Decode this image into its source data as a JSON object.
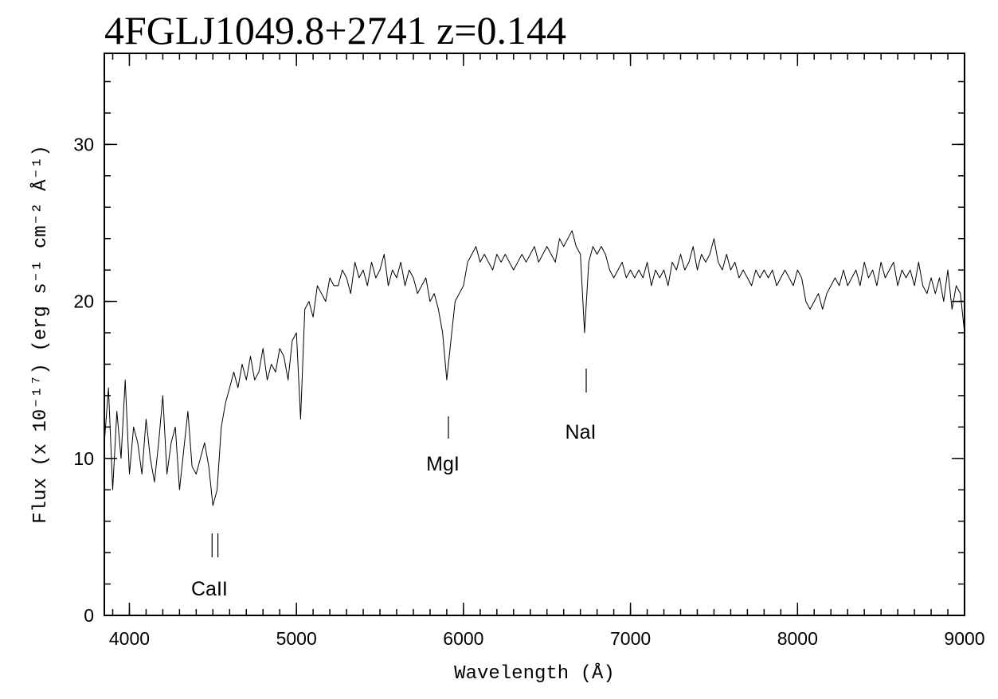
{
  "chart_data": {
    "type": "line",
    "title": "4FGLJ1049.8+2741 z=0.144",
    "x_label": "Wavelength (Å)",
    "y_label": "Flux (x 10⁻¹⁷) (erg s⁻¹ cm⁻² Å⁻¹)",
    "color": "#000000",
    "xlim": [
      3850,
      9000
    ],
    "ylim": [
      0,
      35.8
    ],
    "xticks": [
      4000,
      5000,
      6000,
      7000,
      8000,
      9000
    ],
    "yticks": [
      0,
      10,
      20,
      30
    ],
    "annotations": [
      {
        "text": "CaII",
        "x": [
          4495,
          4530
        ]
      },
      {
        "text": "MgI",
        "x": [
          5910
        ]
      },
      {
        "text": "NaI",
        "x": [
          6735
        ]
      }
    ],
    "x": [
      3850,
      3875,
      3900,
      3925,
      3950,
      3975,
      4000,
      4025,
      4050,
      4075,
      4100,
      4125,
      4150,
      4175,
      4200,
      4225,
      4250,
      4275,
      4300,
      4325,
      4350,
      4375,
      4400,
      4425,
      4450,
      4475,
      4500,
      4525,
      4550,
      4575,
      4600,
      4625,
      4650,
      4675,
      4700,
      4725,
      4750,
      4775,
      4800,
      4825,
      4850,
      4875,
      4900,
      4925,
      4950,
      4975,
      5000,
      5025,
      5050,
      5075,
      5100,
      5125,
      5150,
      5175,
      5200,
      5225,
      5250,
      5275,
      5300,
      5325,
      5350,
      5375,
      5400,
      5425,
      5450,
      5475,
      5500,
      5525,
      5550,
      5575,
      5600,
      5625,
      5650,
      5675,
      5700,
      5725,
      5750,
      5775,
      5800,
      5825,
      5850,
      5875,
      5900,
      5925,
      5950,
      5975,
      6000,
      6025,
      6050,
      6075,
      6100,
      6125,
      6150,
      6175,
      6200,
      6225,
      6250,
      6275,
      6300,
      6325,
      6350,
      6375,
      6400,
      6425,
      6450,
      6475,
      6500,
      6525,
      6550,
      6575,
      6600,
      6625,
      6650,
      6675,
      6700,
      6725,
      6750,
      6775,
      6800,
      6825,
      6850,
      6875,
      6900,
      6925,
      6950,
      6975,
      7000,
      7025,
      7050,
      7075,
      7100,
      7125,
      7150,
      7175,
      7200,
      7225,
      7250,
      7275,
      7300,
      7325,
      7350,
      7375,
      7400,
      7425,
      7450,
      7475,
      7500,
      7525,
      7550,
      7575,
      7600,
      7625,
      7650,
      7675,
      7700,
      7725,
      7750,
      7775,
      7800,
      7825,
      7850,
      7875,
      7900,
      7925,
      7950,
      7975,
      8000,
      8025,
      8050,
      8075,
      8100,
      8125,
      8150,
      8175,
      8200,
      8225,
      8250,
      8275,
      8300,
      8325,
      8350,
      8375,
      8400,
      8425,
      8450,
      8475,
      8500,
      8525,
      8550,
      8575,
      8600,
      8625,
      8650,
      8675,
      8700,
      8725,
      8750,
      8775,
      8800,
      8825,
      8850,
      8875,
      8900,
      8925,
      8950,
      8975,
      9000
    ],
    "values": [
      11,
      14.5,
      8,
      13,
      10,
      15,
      9,
      12,
      11,
      9,
      12.5,
      10,
      8.5,
      11,
      14,
      9,
      11,
      12,
      8,
      10.5,
      13,
      9.5,
      9,
      10,
      11,
      9.5,
      7,
      8,
      12,
      13.5,
      14.5,
      15.5,
      14.5,
      16,
      15,
      16.5,
      15,
      15.5,
      17,
      15,
      16,
      15.5,
      17,
      16.5,
      15,
      17.5,
      18,
      12.5,
      19.5,
      20,
      19,
      21,
      20.5,
      20,
      21.5,
      21,
      21,
      22,
      21.5,
      20.5,
      22.5,
      21.5,
      22,
      21,
      22.5,
      21.5,
      22,
      23,
      21,
      22,
      21.5,
      22.5,
      21,
      22,
      21.5,
      20.5,
      21,
      21.5,
      20,
      20.5,
      19.5,
      18,
      15,
      17.5,
      20,
      20.5,
      21,
      22.5,
      23,
      23.5,
      22.5,
      23,
      22.5,
      22,
      23,
      22.5,
      23,
      22.5,
      22,
      22.5,
      23,
      22.5,
      23,
      23.5,
      22.5,
      23,
      23.5,
      23,
      22.5,
      24,
      23.5,
      24,
      24.5,
      23.5,
      23,
      18,
      22.5,
      23.5,
      23,
      23.5,
      23,
      22,
      21.5,
      22,
      22.5,
      21.5,
      22,
      21.5,
      22,
      21.5,
      22.5,
      21,
      22,
      21.5,
      22,
      21,
      22.5,
      22,
      23,
      22,
      22.5,
      23.5,
      22,
      23,
      22.5,
      23,
      24,
      22.5,
      22,
      23,
      22,
      22.5,
      21.5,
      22,
      21.5,
      21,
      22,
      21.5,
      22,
      21.5,
      22,
      21,
      21.5,
      22,
      21.5,
      21,
      22,
      21.5,
      20,
      19.5,
      20,
      20.5,
      19.5,
      20.5,
      21,
      21.5,
      21,
      22,
      21,
      21.5,
      22,
      21,
      22.5,
      21.5,
      22,
      21,
      22.5,
      21.5,
      22,
      22.5,
      21,
      22,
      21.5,
      22,
      21,
      22.5,
      21,
      20.5,
      21.5,
      20.5,
      21.5,
      20,
      22,
      19.5,
      21,
      20.5,
      18
    ]
  }
}
